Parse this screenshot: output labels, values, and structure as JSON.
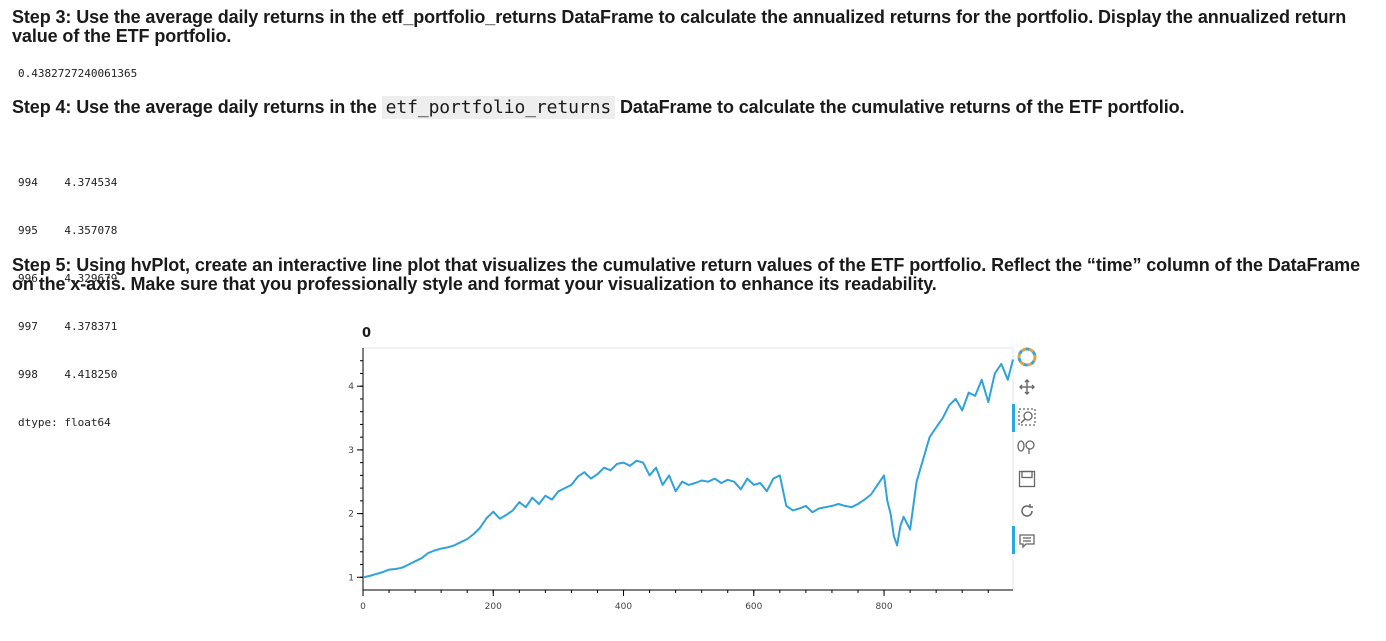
{
  "notebook": {
    "step3": {
      "heading": "Step 3: Use the average daily returns in the etf_portfolio_returns DataFrame to calculate the annualized returns for the portfolio. Display the annualized return value of the ETF portfolio.",
      "output": "0.4382727240061365"
    },
    "step4": {
      "heading_before": "Step 4: Use the average daily returns in the ",
      "heading_code": "etf_portfolio_returns",
      "heading_after": " DataFrame to calculate the cumulative returns of the ETF portfolio.",
      "output_rows": [
        {
          "index": "994",
          "value": "4.374534"
        },
        {
          "index": "995",
          "value": "4.357078"
        },
        {
          "index": "996",
          "value": "4.329679"
        },
        {
          "index": "997",
          "value": "4.378371"
        },
        {
          "index": "998",
          "value": "4.418250"
        }
      ],
      "dtype": "dtype: float64"
    },
    "step5": {
      "heading": "Step 5: Using hvPlot, create an interactive line plot that visualizes the cumulative return values of the ETF portfolio. Reflect the “time” column of the DataFrame on the x-axis. Make sure that you professionally style and format your visualization to enhance its readability."
    }
  },
  "chart_data": {
    "type": "line",
    "title": "0",
    "xlabel": "",
    "ylabel": "",
    "xlim": [
      0,
      998
    ],
    "ylim": [
      0.8,
      4.6
    ],
    "x_ticks": [
      0,
      200,
      400,
      600,
      800
    ],
    "y_ticks": [
      1,
      2,
      3,
      4
    ],
    "line_color": "#30a2da",
    "grid": false,
    "series": [
      {
        "x": [
          0,
          10,
          20,
          30,
          40,
          50,
          60,
          70,
          80,
          90,
          100,
          110,
          120,
          130,
          140,
          150,
          160,
          170,
          180,
          190,
          200,
          210,
          220,
          230,
          240,
          250,
          260,
          270,
          280,
          290,
          300,
          310,
          320,
          330,
          340,
          350,
          360,
          370,
          380,
          390,
          400,
          410,
          420,
          430,
          440,
          450,
          460,
          470,
          480,
          490,
          500,
          510,
          520,
          530,
          540,
          550,
          560,
          570,
          580,
          590,
          600,
          610,
          620,
          630,
          640,
          650,
          660,
          670,
          680,
          690,
          700,
          710,
          720,
          730,
          740,
          750,
          760,
          770,
          780,
          790,
          800,
          805,
          810,
          815,
          820,
          825,
          830,
          840,
          850,
          860,
          870,
          880,
          890,
          900,
          910,
          920,
          930,
          940,
          950,
          960,
          970,
          980,
          990,
          998
        ],
        "y": [
          1.0,
          1.02,
          1.05,
          1.08,
          1.12,
          1.13,
          1.15,
          1.2,
          1.25,
          1.3,
          1.38,
          1.42,
          1.45,
          1.47,
          1.5,
          1.55,
          1.6,
          1.68,
          1.78,
          1.93,
          2.03,
          1.92,
          1.98,
          2.05,
          2.18,
          2.1,
          2.25,
          2.15,
          2.28,
          2.22,
          2.35,
          2.4,
          2.45,
          2.58,
          2.65,
          2.55,
          2.62,
          2.72,
          2.68,
          2.78,
          2.8,
          2.75,
          2.83,
          2.8,
          2.6,
          2.72,
          2.45,
          2.6,
          2.35,
          2.5,
          2.45,
          2.48,
          2.52,
          2.5,
          2.55,
          2.48,
          2.53,
          2.5,
          2.38,
          2.55,
          2.45,
          2.48,
          2.35,
          2.55,
          2.6,
          2.12,
          2.05,
          2.08,
          2.12,
          2.02,
          2.08,
          2.1,
          2.12,
          2.15,
          2.12,
          2.1,
          2.15,
          2.22,
          2.3,
          2.45,
          2.6,
          2.2,
          2.0,
          1.65,
          1.5,
          1.8,
          1.95,
          1.75,
          2.5,
          2.85,
          3.2,
          3.35,
          3.5,
          3.7,
          3.8,
          3.62,
          3.9,
          3.85,
          4.1,
          3.75,
          4.2,
          4.35,
          4.1,
          4.42
        ]
      }
    ]
  },
  "toolbar": {
    "tools": [
      "bokeh-logo-icon",
      "pan-icon",
      "box-zoom-icon",
      "wheel-zoom-icon",
      "save-icon",
      "reset-icon",
      "hover-icon"
    ]
  }
}
